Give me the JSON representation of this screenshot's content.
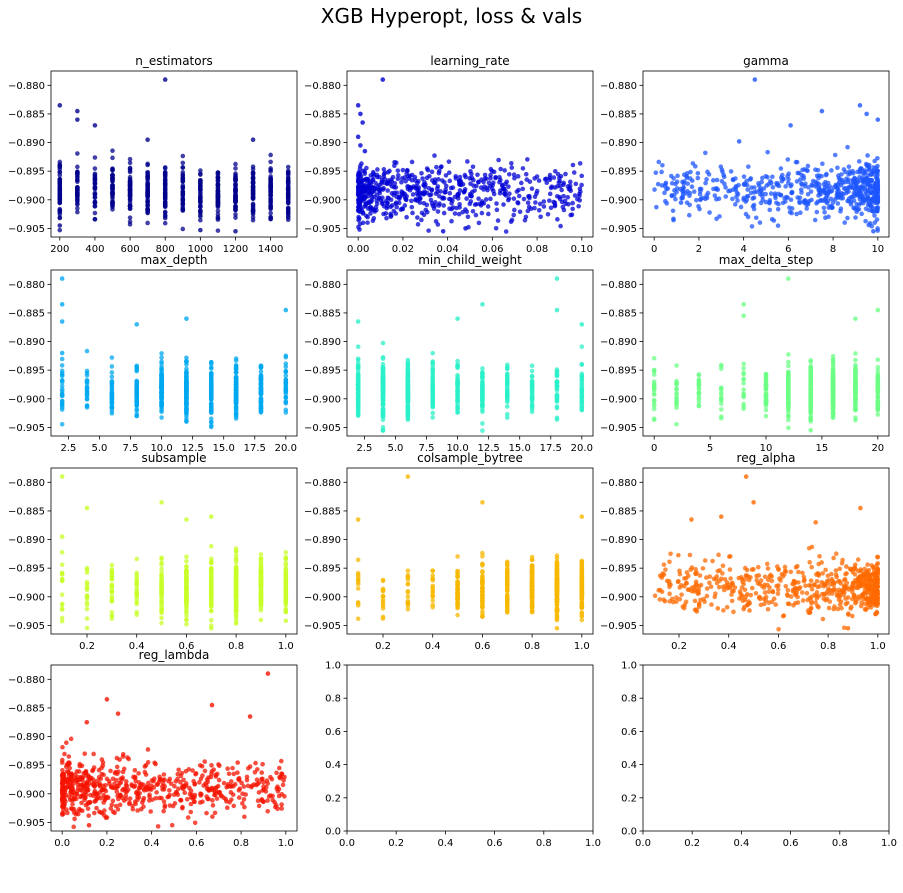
{
  "figure": {
    "title": "XGB Hyperopt, loss & vals"
  },
  "chart_data": [
    {
      "type": "scatter",
      "title": "n_estimators",
      "color": "#00008b",
      "xlim": [
        150,
        1550
      ],
      "ylim": [
        -0.9065,
        -0.8775
      ],
      "xticks": [
        200,
        400,
        600,
        800,
        1000,
        1200,
        1400
      ],
      "xtick_labels": [
        "200",
        "400",
        "600",
        "800",
        "1000",
        "1200",
        "1400"
      ],
      "yticks": [
        -0.905,
        -0.9,
        -0.895,
        -0.89,
        -0.885,
        -0.88
      ],
      "ytick_labels": [
        "−0.905",
        "−0.900",
        "−0.895",
        "−0.890",
        "−0.885",
        "−0.880"
      ],
      "distribution": {
        "kind": "discrete",
        "levels": [
          200,
          300,
          400,
          500,
          600,
          700,
          800,
          900,
          1000,
          1100,
          1200,
          1300,
          1400,
          1500
        ],
        "count": 700,
        "y_center": -0.8985,
        "y_spread": 0.0022
      },
      "points": [
        {
          "x": 800,
          "y": -0.879
        },
        {
          "x": 200,
          "y": -0.8835
        },
        {
          "x": 300,
          "y": -0.8845
        },
        {
          "x": 300,
          "y": -0.886
        },
        {
          "x": 400,
          "y": -0.887
        },
        {
          "x": 1300,
          "y": -0.8895
        },
        {
          "x": 700,
          "y": -0.8895
        },
        {
          "x": 1200,
          "y": -0.9055
        },
        {
          "x": 1000,
          "y": -0.9053
        },
        {
          "x": 200,
          "y": -0.9045
        }
      ]
    },
    {
      "type": "scatter",
      "title": "learning_rate",
      "color": "#0000d4",
      "xlim": [
        -0.005,
        0.105
      ],
      "ylim": [
        -0.9065,
        -0.8775
      ],
      "xticks": [
        0.0,
        0.02,
        0.04,
        0.06,
        0.08,
        0.1
      ],
      "xtick_labels": [
        "0.00",
        "0.02",
        "0.04",
        "0.06",
        "0.08",
        "0.10"
      ],
      "yticks": [
        -0.905,
        -0.9,
        -0.895,
        -0.89,
        -0.885,
        -0.88
      ],
      "ytick_labels": [
        "−0.905",
        "−0.900",
        "−0.895",
        "−0.890",
        "−0.885",
        "−0.880"
      ],
      "distribution": {
        "kind": "skew-low",
        "min": 0.0,
        "max": 0.1,
        "count": 650,
        "y_center": -0.899,
        "y_spread": 0.0025
      },
      "points": [
        {
          "x": 0.011,
          "y": -0.879
        },
        {
          "x": 0.0,
          "y": -0.8835
        },
        {
          "x": 0.001,
          "y": -0.885
        },
        {
          "x": 0.002,
          "y": -0.8865
        },
        {
          "x": 0.0,
          "y": -0.889
        },
        {
          "x": 0.001,
          "y": -0.8905
        },
        {
          "x": 0.003,
          "y": -0.8915
        },
        {
          "x": 0.038,
          "y": -0.9055
        },
        {
          "x": 0.048,
          "y": -0.905
        }
      ]
    },
    {
      "type": "scatter",
      "title": "gamma",
      "color": "#1e55ff",
      "xlim": [
        -0.5,
        10.5
      ],
      "ylim": [
        -0.9065,
        -0.8775
      ],
      "xticks": [
        0,
        2,
        4,
        6,
        8,
        10
      ],
      "xtick_labels": [
        "0",
        "2",
        "4",
        "6",
        "8",
        "10"
      ],
      "yticks": [
        -0.905,
        -0.9,
        -0.895,
        -0.89,
        -0.885,
        -0.88
      ],
      "ytick_labels": [
        "−0.905",
        "−0.900",
        "−0.895",
        "−0.890",
        "−0.885",
        "−0.880"
      ],
      "distribution": {
        "kind": "skew-high",
        "min": 0.0,
        "max": 10.0,
        "count": 650,
        "y_center": -0.8985,
        "y_spread": 0.0023
      },
      "points": [
        {
          "x": 4.5,
          "y": -0.879
        },
        {
          "x": 9.2,
          "y": -0.8835
        },
        {
          "x": 7.5,
          "y": -0.8845
        },
        {
          "x": 9.5,
          "y": -0.885
        },
        {
          "x": 10.0,
          "y": -0.886
        },
        {
          "x": 6.1,
          "y": -0.887
        },
        {
          "x": 3.8,
          "y": -0.8898
        },
        {
          "x": 1.2,
          "y": -0.9005
        },
        {
          "x": 9.8,
          "y": -0.9055
        }
      ]
    },
    {
      "type": "scatter",
      "title": "max_depth",
      "color": "#00a8f0",
      "xlim": [
        1.1,
        20.9
      ],
      "ylim": [
        -0.9065,
        -0.8775
      ],
      "xticks": [
        2.5,
        5.0,
        7.5,
        10.0,
        12.5,
        15.0,
        17.5,
        20.0
      ],
      "xtick_labels": [
        "2.5",
        "5.0",
        "7.5",
        "10.0",
        "12.5",
        "15.0",
        "17.5",
        "20.0"
      ],
      "yticks": [
        -0.905,
        -0.9,
        -0.895,
        -0.89,
        -0.885,
        -0.88
      ],
      "ytick_labels": [
        "−0.905",
        "−0.900",
        "−0.895",
        "−0.890",
        "−0.885",
        "−0.880"
      ],
      "distribution": {
        "kind": "discrete",
        "levels": [
          2,
          4,
          6,
          8,
          10,
          12,
          14,
          16,
          18,
          20
        ],
        "weights": [
          1,
          1,
          2,
          4,
          6,
          6,
          6,
          5,
          4,
          2
        ],
        "count": 650,
        "y_center": -0.8985,
        "y_spread": 0.0023
      },
      "points": [
        {
          "x": 2,
          "y": -0.879
        },
        {
          "x": 2,
          "y": -0.8835
        },
        {
          "x": 2,
          "y": -0.8865
        },
        {
          "x": 20,
          "y": -0.8845
        },
        {
          "x": 12,
          "y": -0.886
        },
        {
          "x": 8,
          "y": -0.887
        },
        {
          "x": 2,
          "y": -0.892
        },
        {
          "x": 2,
          "y": -0.896
        },
        {
          "x": 2,
          "y": -0.901
        },
        {
          "x": 2,
          "y": -0.9015
        }
      ]
    },
    {
      "type": "scatter",
      "title": "min_child_weight",
      "color": "#29f0c8",
      "xlim": [
        1.1,
        20.9
      ],
      "ylim": [
        -0.9065,
        -0.8775
      ],
      "xticks": [
        2.5,
        5.0,
        7.5,
        10.0,
        12.5,
        15.0,
        17.5,
        20.0
      ],
      "xtick_labels": [
        "2.5",
        "5.0",
        "7.5",
        "10.0",
        "12.5",
        "15.0",
        "17.5",
        "20.0"
      ],
      "yticks": [
        -0.905,
        -0.9,
        -0.895,
        -0.89,
        -0.885,
        -0.88
      ],
      "ytick_labels": [
        "−0.905",
        "−0.900",
        "−0.895",
        "−0.890",
        "−0.885",
        "−0.880"
      ],
      "distribution": {
        "kind": "discrete",
        "levels": [
          2,
          4,
          6,
          8,
          10,
          12,
          14,
          16,
          18,
          20
        ],
        "weights": [
          6,
          7,
          6,
          3,
          3,
          3,
          2,
          2,
          2,
          2
        ],
        "count": 650,
        "y_center": -0.8985,
        "y_spread": 0.0023
      },
      "points": [
        {
          "x": 18,
          "y": -0.879
        },
        {
          "x": 12,
          "y": -0.8835
        },
        {
          "x": 18,
          "y": -0.8845
        },
        {
          "x": 2,
          "y": -0.8865
        },
        {
          "x": 10,
          "y": -0.886
        },
        {
          "x": 20,
          "y": -0.887
        },
        {
          "x": 4,
          "y": -0.9055
        }
      ]
    },
    {
      "type": "scatter",
      "title": "max_delta_step",
      "color": "#6cff84",
      "xlim": [
        -1,
        21
      ],
      "ylim": [
        -0.9065,
        -0.8775
      ],
      "xticks": [
        0,
        5,
        10,
        15,
        20
      ],
      "xtick_labels": [
        "0",
        "5",
        "10",
        "15",
        "20"
      ],
      "yticks": [
        -0.905,
        -0.9,
        -0.895,
        -0.89,
        -0.885,
        -0.88
      ],
      "ytick_labels": [
        "−0.905",
        "−0.900",
        "−0.895",
        "−0.890",
        "−0.885",
        "−0.880"
      ],
      "distribution": {
        "kind": "discrete",
        "levels": [
          0,
          2,
          4,
          6,
          8,
          10,
          12,
          14,
          16,
          18,
          20
        ],
        "weights": [
          1,
          1,
          1,
          1,
          1,
          2,
          4,
          7,
          8,
          5,
          3
        ],
        "count": 650,
        "y_center": -0.8985,
        "y_spread": 0.0023
      },
      "points": [
        {
          "x": 12,
          "y": -0.879
        },
        {
          "x": 8,
          "y": -0.8835
        },
        {
          "x": 20,
          "y": -0.8845
        },
        {
          "x": 8,
          "y": -0.8855
        },
        {
          "x": 18,
          "y": -0.886
        },
        {
          "x": 14,
          "y": -0.9055
        }
      ]
    },
    {
      "type": "scatter",
      "title": "subsample",
      "color": "#c8ff28",
      "xlim": [
        0.055,
        1.045
      ],
      "ylim": [
        -0.9065,
        -0.8775
      ],
      "xticks": [
        0.2,
        0.4,
        0.6,
        0.8,
        1.0
      ],
      "xtick_labels": [
        "0.2",
        "0.4",
        "0.6",
        "0.8",
        "1.0"
      ],
      "yticks": [
        -0.905,
        -0.9,
        -0.895,
        -0.89,
        -0.885,
        -0.88
      ],
      "ytick_labels": [
        "−0.905",
        "−0.900",
        "−0.895",
        "−0.890",
        "−0.885",
        "−0.880"
      ],
      "distribution": {
        "kind": "discrete",
        "levels": [
          0.1,
          0.2,
          0.3,
          0.4,
          0.5,
          0.6,
          0.7,
          0.8,
          0.9,
          1.0
        ],
        "weights": [
          1,
          1,
          1,
          2,
          3,
          5,
          8,
          8,
          6,
          4
        ],
        "count": 650,
        "y_center": -0.8985,
        "y_spread": 0.0023
      },
      "points": [
        {
          "x": 0.1,
          "y": -0.879
        },
        {
          "x": 0.2,
          "y": -0.8845
        },
        {
          "x": 0.5,
          "y": -0.8835
        },
        {
          "x": 0.6,
          "y": -0.8865
        },
        {
          "x": 0.7,
          "y": -0.886
        },
        {
          "x": 0.1,
          "y": -0.8895
        },
        {
          "x": 0.1,
          "y": -0.897
        },
        {
          "x": 0.7,
          "y": -0.9055
        }
      ]
    },
    {
      "type": "scatter",
      "title": "colsample_bytree",
      "color": "#f7b800",
      "xlim": [
        0.055,
        1.045
      ],
      "ylim": [
        -0.9065,
        -0.8775
      ],
      "xticks": [
        0.2,
        0.4,
        0.6,
        0.8,
        1.0
      ],
      "xtick_labels": [
        "0.2",
        "0.4",
        "0.6",
        "0.8",
        "1.0"
      ],
      "yticks": [
        -0.905,
        -0.9,
        -0.895,
        -0.89,
        -0.885,
        -0.88
      ],
      "ytick_labels": [
        "−0.905",
        "−0.900",
        "−0.895",
        "−0.890",
        "−0.885",
        "−0.880"
      ],
      "distribution": {
        "kind": "discrete",
        "levels": [
          0.1,
          0.2,
          0.3,
          0.4,
          0.5,
          0.6,
          0.7,
          0.8,
          0.9,
          1.0
        ],
        "weights": [
          1,
          1,
          1,
          1,
          2,
          3,
          4,
          7,
          9,
          7
        ],
        "count": 650,
        "y_center": -0.8985,
        "y_spread": 0.0023
      },
      "points": [
        {
          "x": 0.3,
          "y": -0.879
        },
        {
          "x": 0.6,
          "y": -0.8835
        },
        {
          "x": 0.1,
          "y": -0.8865
        },
        {
          "x": 1.0,
          "y": -0.886
        },
        {
          "x": 0.9,
          "y": -0.9055
        }
      ]
    },
    {
      "type": "scatter",
      "title": "reg_alpha",
      "color": "#ff6a00",
      "xlim": [
        0.055,
        1.045
      ],
      "ylim": [
        -0.9065,
        -0.8775
      ],
      "xticks": [
        0.2,
        0.4,
        0.6,
        0.8,
        1.0
      ],
      "xtick_labels": [
        "0.2",
        "0.4",
        "0.6",
        "0.8",
        "1.0"
      ],
      "yticks": [
        -0.905,
        -0.9,
        -0.895,
        -0.89,
        -0.885,
        -0.88
      ],
      "ytick_labels": [
        "−0.905",
        "−0.900",
        "−0.895",
        "−0.890",
        "−0.885",
        "−0.880"
      ],
      "distribution": {
        "kind": "skew-high",
        "min": 0.1,
        "max": 1.0,
        "count": 650,
        "y_center": -0.8985,
        "y_spread": 0.0023
      },
      "points": [
        {
          "x": 0.47,
          "y": -0.879
        },
        {
          "x": 0.5,
          "y": -0.8835
        },
        {
          "x": 0.37,
          "y": -0.886
        },
        {
          "x": 0.25,
          "y": -0.8865
        },
        {
          "x": 0.75,
          "y": -0.887
        },
        {
          "x": 0.93,
          "y": -0.8845
        },
        {
          "x": 0.88,
          "y": -0.9055
        }
      ]
    },
    {
      "type": "scatter",
      "title": "reg_lambda",
      "color": "#f51300",
      "xlim": [
        -0.05,
        1.05
      ],
      "ylim": [
        -0.9065,
        -0.8775
      ],
      "xticks": [
        0.0,
        0.2,
        0.4,
        0.6,
        0.8,
        1.0
      ],
      "xtick_labels": [
        "0.0",
        "0.2",
        "0.4",
        "0.6",
        "0.8",
        "1.0"
      ],
      "yticks": [
        -0.905,
        -0.9,
        -0.895,
        -0.89,
        -0.885,
        -0.88
      ],
      "ytick_labels": [
        "−0.905",
        "−0.900",
        "−0.895",
        "−0.890",
        "−0.885",
        "−0.880"
      ],
      "distribution": {
        "kind": "skew-low",
        "min": 0.0,
        "max": 1.0,
        "count": 650,
        "y_center": -0.899,
        "y_spread": 0.0024
      },
      "points": [
        {
          "x": 0.92,
          "y": -0.879
        },
        {
          "x": 0.2,
          "y": -0.8835
        },
        {
          "x": 0.67,
          "y": -0.8845
        },
        {
          "x": 0.84,
          "y": -0.8865
        },
        {
          "x": 0.25,
          "y": -0.886
        },
        {
          "x": 0.11,
          "y": -0.8875
        },
        {
          "x": 0.12,
          "y": -0.9055
        },
        {
          "x": 0.95,
          "y": -0.9015
        }
      ]
    },
    {
      "type": "empty",
      "title": "",
      "xlim": [
        0,
        1
      ],
      "ylim": [
        0,
        1
      ],
      "xticks": [
        0.0,
        0.2,
        0.4,
        0.6,
        0.8,
        1.0
      ],
      "xtick_labels": [
        "0.0",
        "0.2",
        "0.4",
        "0.6",
        "0.8",
        "1.0"
      ],
      "yticks": [
        0.0,
        0.2,
        0.4,
        0.6,
        0.8,
        1.0
      ],
      "ytick_labels": [
        "0.0",
        "0.2",
        "0.4",
        "0.6",
        "0.8",
        "1.0"
      ]
    },
    {
      "type": "empty",
      "title": "",
      "xlim": [
        0,
        1
      ],
      "ylim": [
        0,
        1
      ],
      "xticks": [
        0.0,
        0.2,
        0.4,
        0.6,
        0.8,
        1.0
      ],
      "xtick_labels": [
        "0.0",
        "0.2",
        "0.4",
        "0.6",
        "0.8",
        "1.0"
      ],
      "yticks": [
        0.0,
        0.2,
        0.4,
        0.6,
        0.8,
        1.0
      ],
      "ytick_labels": [
        "0.0",
        "0.2",
        "0.4",
        "0.6",
        "0.8",
        "1.0"
      ]
    }
  ]
}
